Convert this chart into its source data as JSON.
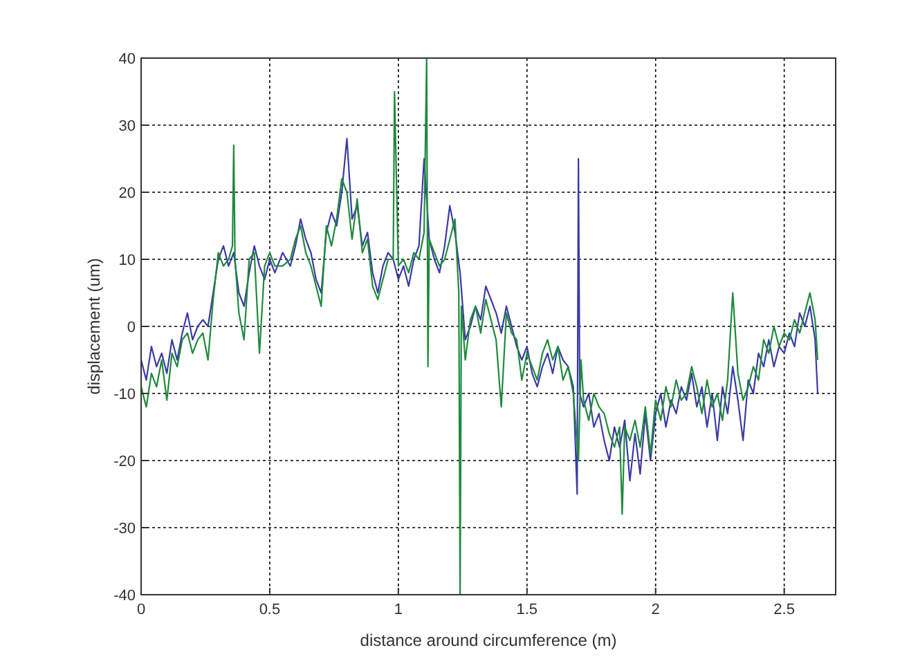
{
  "chart_data": {
    "type": "line",
    "xlabel": "distance around circumference (m)",
    "ylabel": "displacement (um)",
    "xlim": [
      0,
      2.7
    ],
    "ylim": [
      -40,
      40
    ],
    "xticks": [
      0,
      0.5,
      1,
      1.5,
      2,
      2.5
    ],
    "yticks": [
      -40,
      -30,
      -20,
      -10,
      0,
      10,
      20,
      30,
      40
    ],
    "grid": true,
    "line_style": "solid",
    "series": [
      {
        "color": "#3a3aa8",
        "x": [
          0,
          0.02,
          0.04,
          0.06,
          0.08,
          0.1,
          0.12,
          0.14,
          0.16,
          0.18,
          0.2,
          0.22,
          0.24,
          0.26,
          0.28,
          0.3,
          0.32,
          0.34,
          0.36,
          0.38,
          0.4,
          0.42,
          0.44,
          0.46,
          0.48,
          0.5,
          0.52,
          0.55,
          0.58,
          0.6,
          0.62,
          0.64,
          0.66,
          0.68,
          0.7,
          0.72,
          0.74,
          0.76,
          0.78,
          0.8,
          0.82,
          0.84,
          0.86,
          0.88,
          0.9,
          0.92,
          0.94,
          0.96,
          0.98,
          1,
          1.02,
          1.04,
          1.06,
          1.08,
          1.1,
          1.12,
          1.14,
          1.16,
          1.18,
          1.2,
          1.22,
          1.24,
          1.26,
          1.28,
          1.3,
          1.32,
          1.34,
          1.36,
          1.38,
          1.4,
          1.42,
          1.44,
          1.46,
          1.48,
          1.5,
          1.52,
          1.54,
          1.56,
          1.58,
          1.6,
          1.62,
          1.64,
          1.66,
          1.68,
          1.695,
          1.7,
          1.705,
          1.72,
          1.74,
          1.76,
          1.78,
          1.8,
          1.82,
          1.84,
          1.86,
          1.88,
          1.9,
          1.92,
          1.94,
          1.96,
          1.98,
          2,
          2.02,
          2.04,
          2.06,
          2.08,
          2.1,
          2.12,
          2.14,
          2.16,
          2.18,
          2.2,
          2.22,
          2.24,
          2.26,
          2.28,
          2.3,
          2.32,
          2.34,
          2.36,
          2.38,
          2.4,
          2.42,
          2.44,
          2.46,
          2.48,
          2.5,
          2.52,
          2.54,
          2.56,
          2.58,
          2.6,
          2.62,
          2.63
        ],
        "values": [
          -5,
          -8,
          -3,
          -6,
          -4,
          -7,
          -2,
          -5,
          -1,
          2,
          -2,
          0,
          1,
          0,
          5,
          10,
          12,
          9,
          11,
          5,
          3,
          8,
          12,
          9,
          7,
          10,
          8,
          11,
          9,
          12,
          16,
          13,
          11,
          7,
          5,
          14,
          17,
          15,
          20,
          28,
          16,
          18,
          12,
          14,
          8,
          5,
          9,
          11,
          10,
          7,
          9,
          6,
          10,
          12,
          25,
          13,
          10,
          8,
          12,
          18,
          14,
          8,
          -2,
          0,
          3,
          1,
          6,
          4,
          2,
          -1,
          3,
          0,
          -3,
          -5,
          -3,
          -7,
          -9,
          -6,
          -4,
          -7,
          -3,
          -5,
          -6,
          -9,
          -25,
          25,
          -10,
          -12,
          -10,
          -15,
          -13,
          -17,
          -20,
          -15,
          -18,
          -14,
          -23,
          -16,
          -22,
          -13,
          -20,
          -13,
          -10,
          -15,
          -11,
          -13,
          -9,
          -11,
          -7,
          -12,
          -9,
          -15,
          -10,
          -17,
          -9,
          -13,
          -6,
          -11,
          -17,
          -8,
          -10,
          -4,
          -6,
          -2,
          -6,
          -3,
          -4,
          -1,
          -3,
          2,
          0,
          3,
          -2,
          -10
        ]
      },
      {
        "color": "#1f8a3c",
        "x": [
          0,
          0.02,
          0.04,
          0.06,
          0.08,
          0.1,
          0.12,
          0.14,
          0.16,
          0.18,
          0.2,
          0.22,
          0.24,
          0.26,
          0.28,
          0.3,
          0.32,
          0.34,
          0.355,
          0.36,
          0.365,
          0.38,
          0.4,
          0.42,
          0.44,
          0.46,
          0.48,
          0.5,
          0.52,
          0.55,
          0.58,
          0.6,
          0.62,
          0.64,
          0.66,
          0.68,
          0.7,
          0.72,
          0.74,
          0.76,
          0.78,
          0.8,
          0.82,
          0.84,
          0.86,
          0.88,
          0.9,
          0.92,
          0.94,
          0.96,
          0.98,
          0.985,
          1,
          1.02,
          1.04,
          1.06,
          1.08,
          1.1,
          1.11,
          1.115,
          1.12,
          1.14,
          1.16,
          1.18,
          1.2,
          1.22,
          1.235,
          1.24,
          1.245,
          1.26,
          1.28,
          1.3,
          1.32,
          1.34,
          1.36,
          1.38,
          1.4,
          1.42,
          1.44,
          1.46,
          1.48,
          1.5,
          1.52,
          1.54,
          1.56,
          1.58,
          1.6,
          1.62,
          1.64,
          1.66,
          1.68,
          1.7,
          1.71,
          1.72,
          1.74,
          1.76,
          1.78,
          1.8,
          1.82,
          1.84,
          1.86,
          1.87,
          1.88,
          1.9,
          1.92,
          1.94,
          1.96,
          1.98,
          2,
          2.02,
          2.04,
          2.06,
          2.08,
          2.1,
          2.12,
          2.14,
          2.16,
          2.18,
          2.2,
          2.22,
          2.24,
          2.26,
          2.28,
          2.3,
          2.32,
          2.34,
          2.36,
          2.38,
          2.4,
          2.42,
          2.44,
          2.46,
          2.48,
          2.5,
          2.52,
          2.54,
          2.56,
          2.58,
          2.6,
          2.62,
          2.63
        ],
        "values": [
          -9,
          -12,
          -7,
          -9,
          -5,
          -11,
          -4,
          -6,
          -2,
          -1,
          -4,
          -2,
          -1,
          -5,
          4,
          11,
          9,
          10,
          12,
          27,
          10,
          2,
          -2,
          10,
          11,
          -4,
          9,
          11,
          9,
          9,
          10,
          13,
          15,
          11,
          9,
          6,
          3,
          15,
          12,
          16,
          22,
          20,
          13,
          19,
          11,
          13,
          6,
          4,
          7,
          10,
          10,
          35,
          9,
          10,
          8,
          11,
          10,
          14,
          40,
          -6,
          13,
          11,
          9,
          10,
          13,
          16,
          5,
          -40,
          3,
          -5,
          1,
          3,
          -1,
          4,
          1,
          -2,
          -12,
          2,
          -1,
          -2,
          -8,
          -4,
          -6,
          -8,
          -4,
          -2,
          -5,
          -3,
          -8,
          -6,
          -10,
          -20,
          -5,
          -11,
          -14,
          -10,
          -12,
          -13,
          -16,
          -18,
          -15,
          -28,
          -15,
          -17,
          -14,
          -18,
          -12,
          -19,
          -11,
          -14,
          -9,
          -12,
          -8,
          -11,
          -10,
          -6,
          -9,
          -13,
          -8,
          -12,
          -10,
          -14,
          -8,
          5,
          -7,
          -11,
          -9,
          -6,
          -8,
          -2,
          -4,
          0,
          -3,
          -1,
          -2,
          1,
          -1,
          2,
          5,
          1,
          -5
        ]
      }
    ]
  }
}
